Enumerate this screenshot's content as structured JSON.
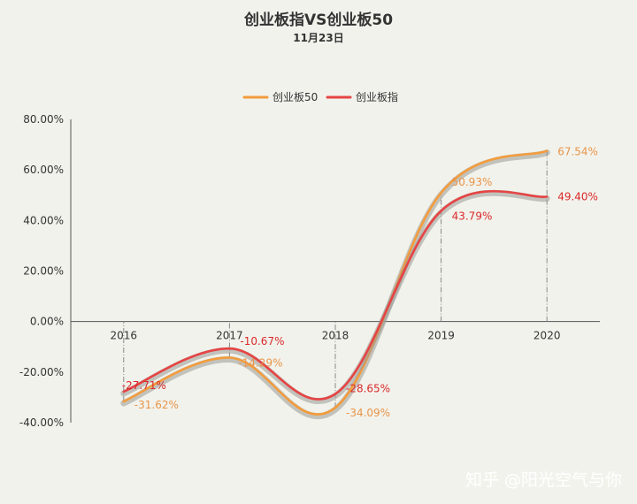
{
  "chart_data": {
    "type": "line",
    "title": "创业板指VS创业板50",
    "subtitle": "11月23日",
    "categories": [
      "2016",
      "2017",
      "2018",
      "2019",
      "2020"
    ],
    "ylim": [
      -40,
      80
    ],
    "yticks": [
      "80.00%",
      "60.00%",
      "40.00%",
      "20.00%",
      "0.00%",
      "-20.00%",
      "-40.00%"
    ],
    "grid": false,
    "legend_position": "top-center",
    "series": [
      {
        "name": "创业板50",
        "color": "#f39c3c",
        "values": [
          -31.62,
          -14.29,
          -34.09,
          50.93,
          67.54
        ],
        "labels": [
          "-31.62%",
          "-14.29%",
          "-34.09%",
          "50.93%",
          "67.54%"
        ]
      },
      {
        "name": "创业板指",
        "color": "#e64444",
        "values": [
          -27.71,
          -10.67,
          -28.65,
          43.79,
          49.4
        ],
        "labels": [
          "-27.71%",
          "-10.67%",
          "-28.65%",
          "43.79%",
          "49.40%"
        ]
      }
    ]
  },
  "watermark": "知乎 @阳光空气与你"
}
